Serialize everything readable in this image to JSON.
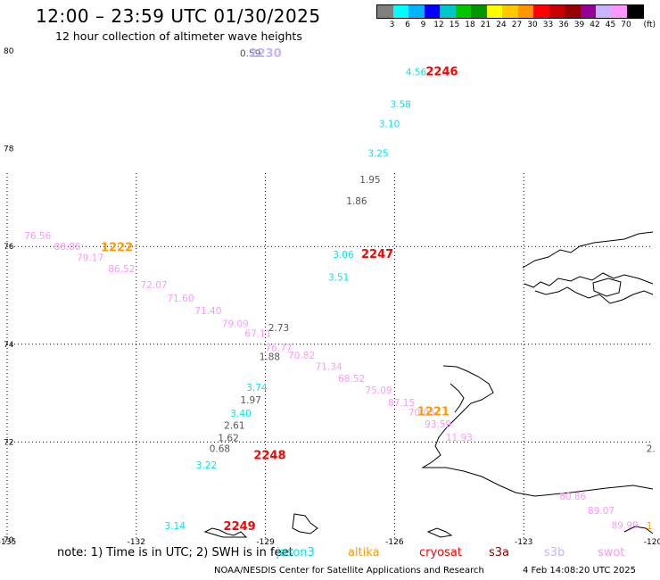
{
  "title": "12:00 – 23:59 UTC 01/30/2025",
  "subtitle": "12 hour collection of altimeter wave heights",
  "legend": {
    "unit": "(ft)",
    "colors": [
      "#808080",
      "#00ffff",
      "#00b4ff",
      "#0000ff",
      "#00c8c8",
      "#00c800",
      "#009600",
      "#ffff00",
      "#ffc800",
      "#ff9600",
      "#ff0000",
      "#c80000",
      "#960000",
      "#960096",
      "#c8b4ff",
      "#ff96ff",
      "#000000"
    ],
    "labels": [
      "3",
      "6",
      "9",
      "12",
      "15",
      "18",
      "21",
      "24",
      "27",
      "30",
      "33",
      "36",
      "39",
      "42",
      "45",
      "70"
    ]
  },
  "axes": {
    "lon_ticks": [
      "-135",
      "-132",
      "-129",
      "-126",
      "-123",
      "-120"
    ],
    "lat_ticks": [
      "80",
      "78",
      "76",
      "74",
      "72",
      "70"
    ]
  },
  "colors": {
    "jason3": "#00e5ee",
    "altika": "#ff9900",
    "cryosat": "#ff0000",
    "s3a": "#8b0000",
    "s3b": "#c8b4ff",
    "swot": "#ff96ff",
    "unknown": "#555555"
  },
  "satellite_labels": [
    {
      "text": "2230",
      "sat": "s3b",
      "lon": -129.0,
      "lat": 79.87
    },
    {
      "text": "2246",
      "sat": "cryosat",
      "lon": -124.9,
      "lat": 79.5
    },
    {
      "text": "2247",
      "sat": "cryosat",
      "lon": -126.4,
      "lat": 75.77
    },
    {
      "text": "1222",
      "sat": "altika",
      "lon": -132.45,
      "lat": 75.9
    },
    {
      "text": "1221",
      "sat": "altika",
      "lon": -125.1,
      "lat": 72.55
    },
    {
      "text": "2248",
      "sat": "cryosat",
      "lon": -128.9,
      "lat": 71.65
    },
    {
      "text": "2249",
      "sat": "cryosat",
      "lon": -129.6,
      "lat": 70.2
    }
  ],
  "wave_heights": [
    {
      "text": "0.59",
      "sat": "unknown",
      "lon": -129.35,
      "lat": 79.88
    },
    {
      "text": "4.56",
      "sat": "jason3",
      "lon": -125.5,
      "lat": 79.5
    },
    {
      "text": "3.58",
      "sat": "jason3",
      "lon": -125.86,
      "lat": 78.84
    },
    {
      "text": "3.10",
      "sat": "jason3",
      "lon": -126.12,
      "lat": 78.44
    },
    {
      "text": "3.25",
      "sat": "jason3",
      "lon": -126.38,
      "lat": 77.84
    },
    {
      "text": "1.95",
      "sat": "unknown",
      "lon": -126.57,
      "lat": 77.3
    },
    {
      "text": "1.86",
      "sat": "unknown",
      "lon": -126.88,
      "lat": 76.86
    },
    {
      "text": "3.06",
      "sat": "jason3",
      "lon": -127.19,
      "lat": 75.77
    },
    {
      "text": "3.51",
      "sat": "jason3",
      "lon": -127.3,
      "lat": 75.3
    },
    {
      "text": "76.56",
      "sat": "swot",
      "lon": -134.29,
      "lat": 76.15
    },
    {
      "text": "88.86",
      "sat": "swot",
      "lon": -133.6,
      "lat": 75.93
    },
    {
      "text": "79.17",
      "sat": "swot",
      "lon": -133.07,
      "lat": 75.7
    },
    {
      "text": "86.52",
      "sat": "swot",
      "lon": -132.34,
      "lat": 75.47
    },
    {
      "text": "72.07",
      "sat": "swot",
      "lon": -131.59,
      "lat": 75.15
    },
    {
      "text": "71.60",
      "sat": "swot",
      "lon": -130.97,
      "lat": 74.87
    },
    {
      "text": "71.40",
      "sat": "swot",
      "lon": -130.33,
      "lat": 74.62
    },
    {
      "text": "79.09",
      "sat": "swot",
      "lon": -129.7,
      "lat": 74.35
    },
    {
      "text": "67.11",
      "sat": "swot",
      "lon": -129.17,
      "lat": 74.15
    },
    {
      "text": "2.73",
      "sat": "unknown",
      "lon": -128.69,
      "lat": 74.27
    },
    {
      "text": "76.77",
      "sat": "swot",
      "lon": -128.69,
      "lat": 73.86
    },
    {
      "text": "1.88",
      "sat": "unknown",
      "lon": -128.9,
      "lat": 73.68
    },
    {
      "text": "70.82",
      "sat": "swot",
      "lon": -128.16,
      "lat": 73.7
    },
    {
      "text": "71.34",
      "sat": "swot",
      "lon": -127.53,
      "lat": 73.48
    },
    {
      "text": "68.52",
      "sat": "swot",
      "lon": -127.0,
      "lat": 73.23
    },
    {
      "text": "75.09",
      "sat": "swot",
      "lon": -126.37,
      "lat": 72.99
    },
    {
      "text": "87.15",
      "sat": "swot",
      "lon": -125.84,
      "lat": 72.74
    },
    {
      "text": "70.05",
      "sat": "swot",
      "lon": -125.37,
      "lat": 72.54
    },
    {
      "text": "93.59",
      "sat": "swot",
      "lon": -124.99,
      "lat": 72.3
    },
    {
      "text": "11.93",
      "sat": "swot",
      "lon": -124.5,
      "lat": 72.03
    },
    {
      "text": "3.74",
      "sat": "jason3",
      "lon": -129.2,
      "lat": 73.05
    },
    {
      "text": "1.97",
      "sat": "unknown",
      "lon": -129.34,
      "lat": 72.79
    },
    {
      "text": "3.40",
      "sat": "jason3",
      "lon": -129.57,
      "lat": 72.52
    },
    {
      "text": "2.61",
      "sat": "unknown",
      "lon": -129.72,
      "lat": 72.27
    },
    {
      "text": "1.62",
      "sat": "unknown",
      "lon": -129.86,
      "lat": 72.02
    },
    {
      "text": "0.68",
      "sat": "unknown",
      "lon": -130.06,
      "lat": 71.8
    },
    {
      "text": "3.22",
      "sat": "jason3",
      "lon": -130.37,
      "lat": 71.46
    },
    {
      "text": "3.14",
      "sat": "jason3",
      "lon": -131.1,
      "lat": 70.22
    },
    {
      "text": "80.86",
      "sat": "swot",
      "lon": -121.86,
      "lat": 70.82
    },
    {
      "text": "89.07",
      "sat": "swot",
      "lon": -121.2,
      "lat": 70.53
    },
    {
      "text": "89.99",
      "sat": "swot",
      "lon": -120.65,
      "lat": 70.23
    }
  ],
  "edge_fragments": [
    {
      "text": "2.",
      "sat": "unknown",
      "lon": -120.15,
      "lat": 71.8
    },
    {
      "text": "1",
      "sat": "altika",
      "lon": -120.15,
      "lat": 70.22
    }
  ],
  "note": {
    "prefix": "note:  1) Time is in UTC;  2) SWH is in feet",
    "sats": [
      {
        "name": "jason3",
        "sat": "jason3"
      },
      {
        "name": "altika",
        "sat": "altika"
      },
      {
        "name": "cryosat",
        "sat": "cryosat"
      },
      {
        "name": "s3a",
        "sat": "s3a"
      },
      {
        "name": "s3b",
        "sat": "s3b"
      },
      {
        "name": "swot",
        "sat": "swot"
      }
    ]
  },
  "footer": "NOAA/NESDIS Center for Satellite Applications and Research",
  "timestamp": "4 Feb 14:08:20 UTC 2025"
}
